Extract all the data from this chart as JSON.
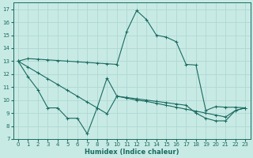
{
  "xlabel": "Humidex (Indice chaleur)",
  "bg_color": "#c8eae5",
  "grid_color": "#b0d8d2",
  "line_color": "#1a6b60",
  "xlim": [
    -0.5,
    23.5
  ],
  "ylim": [
    7,
    17.5
  ],
  "yticks": [
    7,
    8,
    9,
    10,
    11,
    12,
    13,
    14,
    15,
    16,
    17
  ],
  "xticks": [
    0,
    1,
    2,
    3,
    4,
    5,
    6,
    7,
    8,
    9,
    10,
    11,
    12,
    13,
    14,
    15,
    16,
    17,
    18,
    19,
    20,
    21,
    22,
    23
  ],
  "line1_x": [
    0,
    1,
    2,
    3,
    4,
    5,
    6,
    7,
    8,
    9,
    10,
    11,
    12,
    13,
    14,
    15,
    16,
    17,
    18,
    19,
    20,
    21,
    22,
    23
  ],
  "line1_y": [
    13.0,
    13.2,
    13.15,
    13.1,
    13.05,
    13.0,
    12.95,
    12.9,
    12.85,
    12.8,
    12.75,
    15.3,
    16.9,
    16.2,
    15.0,
    14.85,
    14.5,
    12.75,
    12.7,
    9.2,
    9.5,
    9.45,
    9.45,
    9.4
  ],
  "line2_x": [
    0,
    1,
    2,
    3,
    4,
    5,
    6,
    7,
    8,
    9,
    10,
    11,
    12,
    13,
    14,
    15,
    16,
    17,
    18,
    19,
    20,
    21,
    22,
    23
  ],
  "line2_y": [
    13.0,
    12.55,
    12.1,
    11.65,
    11.2,
    10.75,
    10.3,
    9.85,
    9.4,
    8.95,
    10.3,
    10.15,
    10.0,
    9.9,
    9.75,
    9.6,
    9.45,
    9.3,
    9.15,
    9.0,
    8.85,
    8.7,
    9.2,
    9.4
  ],
  "line3_x": [
    0,
    1,
    2,
    3,
    4,
    5,
    6,
    7,
    8,
    9,
    10,
    11,
    12,
    13,
    14,
    15,
    16,
    17,
    18,
    19,
    20,
    21,
    22,
    23
  ],
  "line3_y": [
    13.0,
    11.8,
    10.8,
    9.4,
    9.4,
    8.6,
    8.6,
    7.4,
    9.4,
    11.7,
    10.3,
    10.2,
    10.1,
    10.0,
    9.9,
    9.8,
    9.7,
    9.6,
    9.0,
    8.6,
    8.4,
    8.4,
    9.2,
    9.4
  ]
}
